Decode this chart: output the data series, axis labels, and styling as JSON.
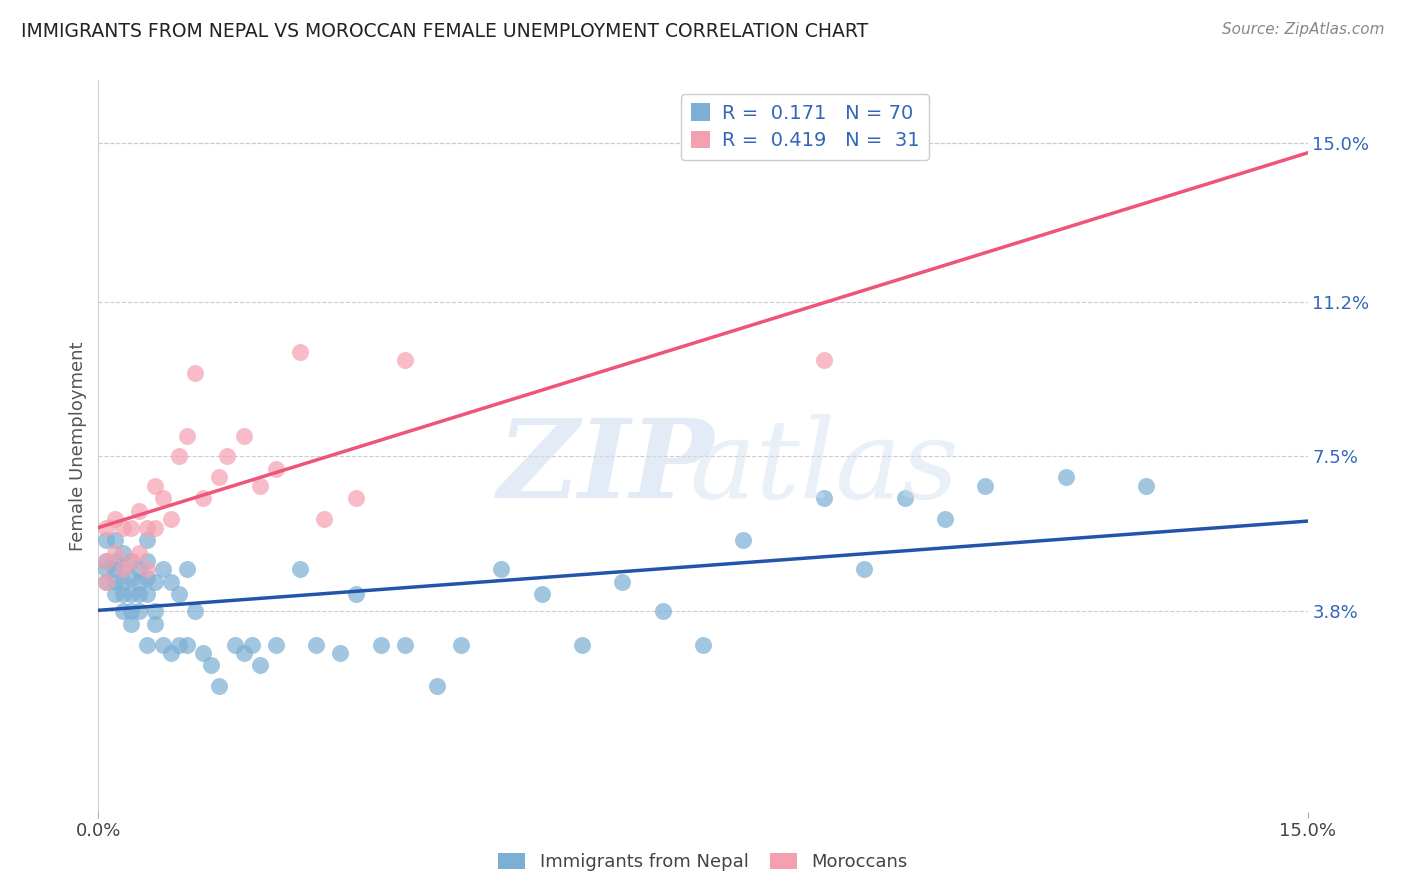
{
  "title": "IMMIGRANTS FROM NEPAL VS MOROCCAN FEMALE UNEMPLOYMENT CORRELATION CHART",
  "source": "Source: ZipAtlas.com",
  "ylabel": "Female Unemployment",
  "x_min": 0.0,
  "x_max": 0.15,
  "y_min": -0.01,
  "y_max": 0.165,
  "y_tick_labels_right": [
    "3.8%",
    "7.5%",
    "11.2%",
    "15.0%"
  ],
  "y_tick_values_right": [
    0.038,
    0.075,
    0.112,
    0.15
  ],
  "blue_color": "#7BAFD4",
  "pink_color": "#F4A0B0",
  "blue_line_color": "#2255AA",
  "pink_line_color": "#EE5577",
  "legend_R_blue": "0.171",
  "legend_N_blue": "70",
  "legend_R_pink": "0.419",
  "legend_N_pink": "31",
  "legend_label_blue": "Immigrants from Nepal",
  "legend_label_pink": "Moroccans",
  "nepal_x": [
    0.001,
    0.001,
    0.001,
    0.001,
    0.002,
    0.002,
    0.002,
    0.002,
    0.002,
    0.003,
    0.003,
    0.003,
    0.003,
    0.003,
    0.004,
    0.004,
    0.004,
    0.004,
    0.004,
    0.005,
    0.005,
    0.005,
    0.005,
    0.006,
    0.006,
    0.006,
    0.006,
    0.006,
    0.007,
    0.007,
    0.007,
    0.008,
    0.008,
    0.009,
    0.009,
    0.01,
    0.01,
    0.011,
    0.011,
    0.012,
    0.013,
    0.014,
    0.015,
    0.017,
    0.018,
    0.019,
    0.02,
    0.022,
    0.025,
    0.027,
    0.03,
    0.032,
    0.035,
    0.038,
    0.042,
    0.045,
    0.05,
    0.055,
    0.06,
    0.065,
    0.07,
    0.075,
    0.08,
    0.09,
    0.095,
    0.1,
    0.105,
    0.11,
    0.12,
    0.13
  ],
  "nepal_y": [
    0.05,
    0.055,
    0.048,
    0.045,
    0.055,
    0.05,
    0.048,
    0.045,
    0.042,
    0.052,
    0.048,
    0.045,
    0.042,
    0.038,
    0.05,
    0.046,
    0.042,
    0.038,
    0.035,
    0.048,
    0.045,
    0.042,
    0.038,
    0.055,
    0.05,
    0.046,
    0.042,
    0.03,
    0.045,
    0.038,
    0.035,
    0.048,
    0.03,
    0.045,
    0.028,
    0.042,
    0.03,
    0.048,
    0.03,
    0.038,
    0.028,
    0.025,
    0.02,
    0.03,
    0.028,
    0.03,
    0.025,
    0.03,
    0.048,
    0.03,
    0.028,
    0.042,
    0.03,
    0.03,
    0.02,
    0.03,
    0.048,
    0.042,
    0.03,
    0.045,
    0.038,
    0.03,
    0.055,
    0.065,
    0.048,
    0.065,
    0.06,
    0.068,
    0.07,
    0.068
  ],
  "morocco_x": [
    0.001,
    0.001,
    0.001,
    0.002,
    0.002,
    0.003,
    0.003,
    0.004,
    0.004,
    0.005,
    0.005,
    0.006,
    0.006,
    0.007,
    0.007,
    0.008,
    0.009,
    0.01,
    0.011,
    0.012,
    0.013,
    0.015,
    0.016,
    0.018,
    0.02,
    0.022,
    0.025,
    0.028,
    0.032,
    0.038,
    0.09
  ],
  "morocco_y": [
    0.058,
    0.05,
    0.045,
    0.06,
    0.052,
    0.058,
    0.048,
    0.058,
    0.05,
    0.062,
    0.052,
    0.058,
    0.048,
    0.068,
    0.058,
    0.065,
    0.06,
    0.075,
    0.08,
    0.095,
    0.065,
    0.07,
    0.075,
    0.08,
    0.068,
    0.072,
    0.1,
    0.06,
    0.065,
    0.098,
    0.098
  ],
  "background_color": "#FFFFFF",
  "grid_color": "#CCCCCC"
}
